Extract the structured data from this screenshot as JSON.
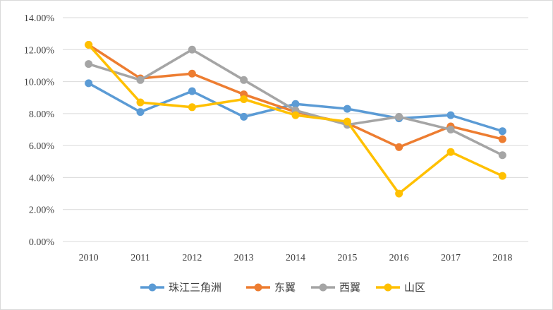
{
  "chart_data": {
    "type": "line",
    "title": "",
    "xlabel": "",
    "ylabel": "",
    "x": [
      "2010",
      "2011",
      "2012",
      "2013",
      "2014",
      "2015",
      "2016",
      "2017",
      "2018"
    ],
    "ylim": [
      0,
      14
    ],
    "yticks": [
      0,
      2,
      4,
      6,
      8,
      10,
      12,
      14
    ],
    "ytick_labels": [
      "0.00%",
      "2.00%",
      "4.00%",
      "6.00%",
      "8.00%",
      "10.00%",
      "12.00%",
      "14.00%"
    ],
    "grid": true,
    "legend_position": "bottom",
    "series": [
      {
        "name": "珠江三角洲",
        "color": "#5b9bd5",
        "values": [
          9.9,
          8.1,
          9.4,
          7.8,
          8.6,
          8.3,
          7.7,
          7.9,
          6.9
        ]
      },
      {
        "name": "东翼",
        "color": "#ed7d31",
        "values": [
          12.3,
          10.2,
          10.5,
          9.2,
          8.1,
          7.4,
          5.9,
          7.2,
          6.4
        ]
      },
      {
        "name": "西翼",
        "color": "#a5a5a5",
        "values": [
          11.1,
          10.1,
          12.0,
          10.1,
          8.2,
          7.3,
          7.8,
          7.0,
          5.4
        ]
      },
      {
        "name": "山区",
        "color": "#ffc000",
        "values": [
          12.3,
          8.7,
          8.4,
          8.9,
          7.9,
          7.5,
          3.0,
          5.6,
          4.1
        ]
      }
    ]
  }
}
